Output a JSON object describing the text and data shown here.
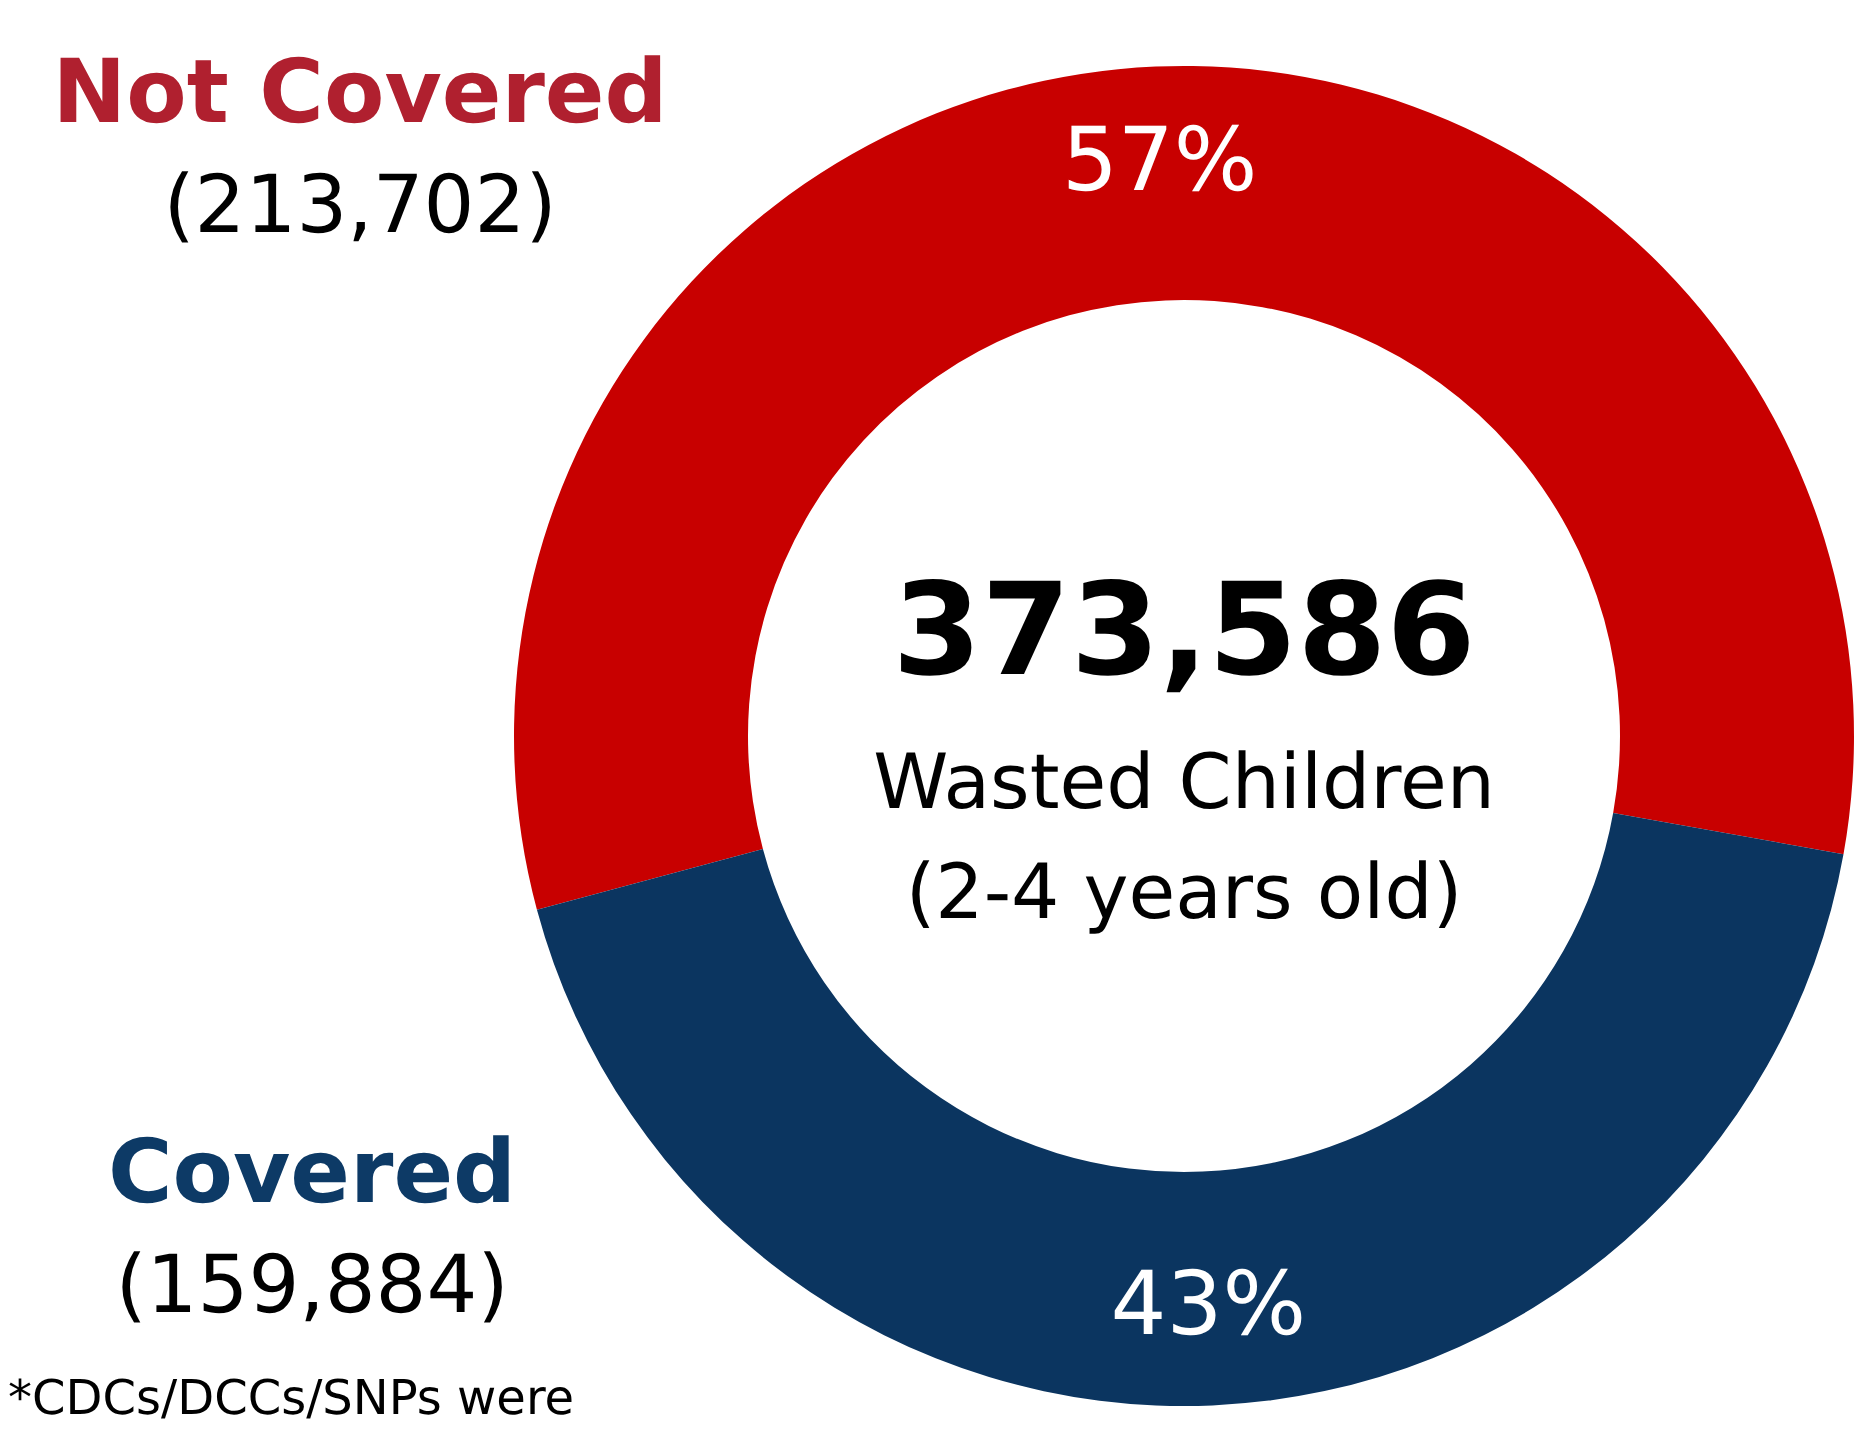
{
  "chart_data": {
    "type": "donut",
    "title": "373,586",
    "subtitle": "Wasted Children",
    "categories": [
      "Not Covered",
      "Covered"
    ],
    "values": [
      57,
      43
    ],
    "colors": [
      "#c80000",
      "#0b3560"
    ],
    "value_labels": [
      "57%",
      "43%"
    ],
    "annotations": [
      "(2-4 years old)",
      "(213,702)",
      "(159,884)",
      "*CDCs/DCCs/SNPs were"
    ]
  }
}
